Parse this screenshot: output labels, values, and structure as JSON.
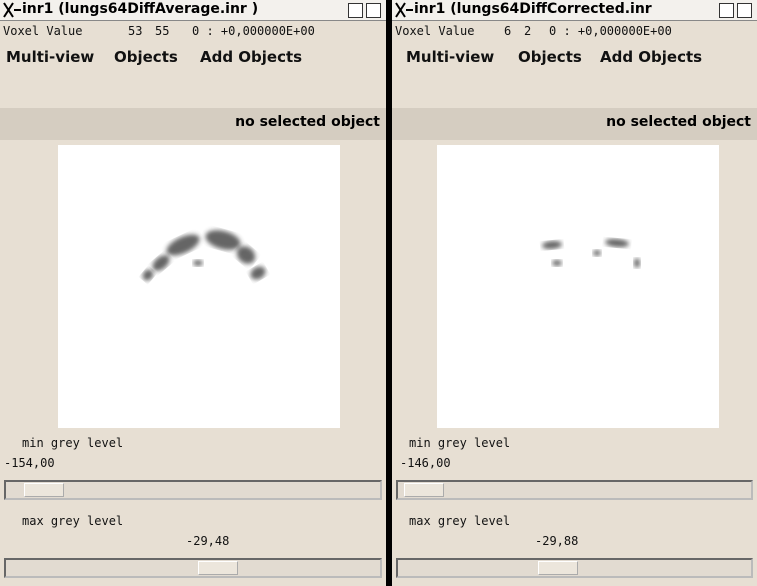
{
  "windows": [
    {
      "title": "inr1 (lungs64DiffAverage.inr )",
      "voxel": {
        "label": "Voxel Value",
        "x": "53",
        "y": "55",
        "value": "0 : +0,000000E+00"
      },
      "menu": [
        "Multi-view",
        "Objects",
        "Add Objects"
      ],
      "status": "no selected object",
      "sliders": [
        {
          "label": "min grey level",
          "value": "-154,00"
        },
        {
          "label": "max grey level",
          "value": "-29,48"
        }
      ]
    },
    {
      "title": "inr1 (lungs64DiffCorrected.inr",
      "voxel": {
        "label": "Voxel Value",
        "x": "6",
        "y": "2",
        "value": "0 : +0,000000E+00"
      },
      "menu": [
        "Multi-view",
        "Objects",
        "Add Objects"
      ],
      "status": "no selected object",
      "sliders": [
        {
          "label": "min grey level",
          "value": "-146,00"
        },
        {
          "label": "max grey level",
          "value": "-29,88"
        }
      ]
    }
  ]
}
